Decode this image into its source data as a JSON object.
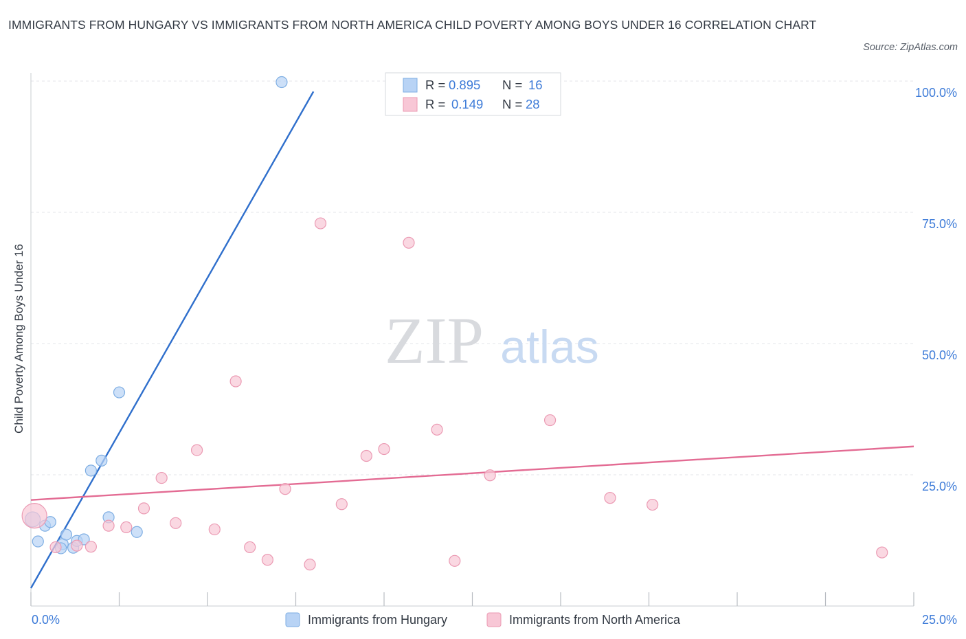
{
  "title": "IMMIGRANTS FROM HUNGARY VS IMMIGRANTS FROM NORTH AMERICA CHILD POVERTY AMONG BOYS UNDER 16 CORRELATION CHART",
  "source": "Source: ZipAtlas.com",
  "watermark": {
    "zip": "ZIP",
    "atlas": "atlas"
  },
  "legend_box": {
    "rows": [
      {
        "r_label": "R =",
        "r_value": "0.895",
        "n_label": "N =",
        "n_value": "16"
      },
      {
        "r_label": "R =",
        "r_value": "0.149",
        "n_label": "N =",
        "n_value": "28"
      }
    ]
  },
  "colors": {
    "hungary_fill": "#b8d3f5",
    "hungary_stroke": "#7eaee3",
    "hungary_line": "#2f6fcc",
    "na_fill": "#f8c7d6",
    "na_stroke": "#eb9ab3",
    "na_line": "#e36b93",
    "value_text": "#3d7bd8",
    "grid": "#e3e6ea"
  },
  "chart_data": {
    "type": "scatter",
    "title": "IMMIGRANTS FROM HUNGARY VS IMMIGRANTS FROM NORTH AMERICA CHILD POVERTY AMONG BOYS UNDER 16 CORRELATION CHART",
    "xlabel": "",
    "ylabel": "Child Poverty Among Boys Under 16",
    "xlim": [
      0,
      25
    ],
    "ylim": [
      0,
      100
    ],
    "x_tick_labels": [
      "0.0%",
      "25.0%"
    ],
    "y_tick_labels": [
      "100.0%",
      "75.0%",
      "50.0%",
      "25.0%"
    ],
    "y_ticks": [
      100,
      75,
      50,
      25
    ],
    "grid": true,
    "legend_position": "bottom-center",
    "series": [
      {
        "name": "Immigrants from Hungary",
        "r": 0.895,
        "n": 16,
        "points": [
          [
            0.05,
            16.5
          ],
          [
            0.2,
            12.3
          ],
          [
            0.4,
            15.3
          ],
          [
            0.55,
            16.0
          ],
          [
            0.9,
            11.8
          ],
          [
            0.85,
            11.0
          ],
          [
            1.0,
            13.6
          ],
          [
            1.2,
            11.1
          ],
          [
            1.3,
            12.4
          ],
          [
            1.5,
            12.7
          ],
          [
            1.7,
            25.8
          ],
          [
            2.0,
            27.7
          ],
          [
            2.2,
            16.9
          ],
          [
            2.5,
            40.7
          ],
          [
            3.0,
            14.1
          ],
          [
            7.1,
            99.8
          ]
        ],
        "trend": {
          "x": [
            0.0,
            8.0
          ],
          "y": [
            3.4,
            98.0
          ]
        }
      },
      {
        "name": "Immigrants from North America",
        "r": 0.149,
        "n": 28,
        "points": [
          [
            0.1,
            17.2
          ],
          [
            0.7,
            11.2
          ],
          [
            1.3,
            11.5
          ],
          [
            1.7,
            11.3
          ],
          [
            2.2,
            15.3
          ],
          [
            2.7,
            15.0
          ],
          [
            3.2,
            18.6
          ],
          [
            3.7,
            24.4
          ],
          [
            4.1,
            15.8
          ],
          [
            4.7,
            29.7
          ],
          [
            5.2,
            14.6
          ],
          [
            5.8,
            42.8
          ],
          [
            6.2,
            11.2
          ],
          [
            6.7,
            8.8
          ],
          [
            7.2,
            22.3
          ],
          [
            7.9,
            7.9
          ],
          [
            8.2,
            72.9
          ],
          [
            8.8,
            19.4
          ],
          [
            9.5,
            28.6
          ],
          [
            10.0,
            29.9
          ],
          [
            10.7,
            69.2
          ],
          [
            11.5,
            33.6
          ],
          [
            12.0,
            8.6
          ],
          [
            13.0,
            24.9
          ],
          [
            14.7,
            35.4
          ],
          [
            16.4,
            20.6
          ],
          [
            17.6,
            19.3
          ],
          [
            24.1,
            10.2
          ]
        ],
        "trend": {
          "x": [
            0.0,
            25.0
          ],
          "y": [
            20.2,
            30.4
          ]
        }
      }
    ]
  }
}
